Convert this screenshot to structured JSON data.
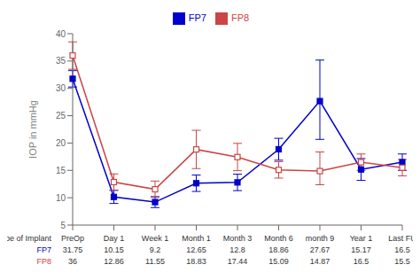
{
  "chart_data": {
    "type": "line",
    "ylabel": "IOP in mmHg",
    "categories": [
      "PreOp",
      "Day 1",
      "Week 1",
      "Month 1",
      "Month 3",
      "Month 6",
      "month 9",
      "Year 1",
      "Last FU"
    ],
    "series": [
      {
        "name": "FP7",
        "color": "#0000CC",
        "marker": "square",
        "values": [
          31.75,
          10.15,
          9.2,
          12.65,
          12.8,
          18.86,
          27.67,
          15.17,
          16.5
        ],
        "error_low": [
          1.5,
          1.2,
          1.0,
          1.5,
          1.5,
          2.0,
          7.0,
          2.0,
          1.5
        ],
        "error_high": [
          1.5,
          1.2,
          1.0,
          1.5,
          1.5,
          2.0,
          7.5,
          2.0,
          1.5
        ]
      },
      {
        "name": "FP8",
        "color": "#CC4444",
        "marker": "open_square",
        "values": [
          36,
          12.86,
          11.55,
          18.83,
          17.44,
          15.09,
          14.87,
          16.5,
          15.5
        ],
        "error_low": [
          2.5,
          1.5,
          1.5,
          3.5,
          2.5,
          1.5,
          2.5,
          1.5,
          1.5
        ],
        "error_high": [
          2.5,
          1.5,
          1.5,
          3.5,
          2.5,
          1.5,
          3.5,
          1.5,
          1.5
        ]
      }
    ],
    "ylim": [
      5,
      40
    ],
    "yticks": [
      5,
      10,
      15,
      20,
      25,
      30,
      35,
      40
    ],
    "grid": false,
    "legend": "top",
    "annotations": [
      "Type of Implant"
    ]
  }
}
